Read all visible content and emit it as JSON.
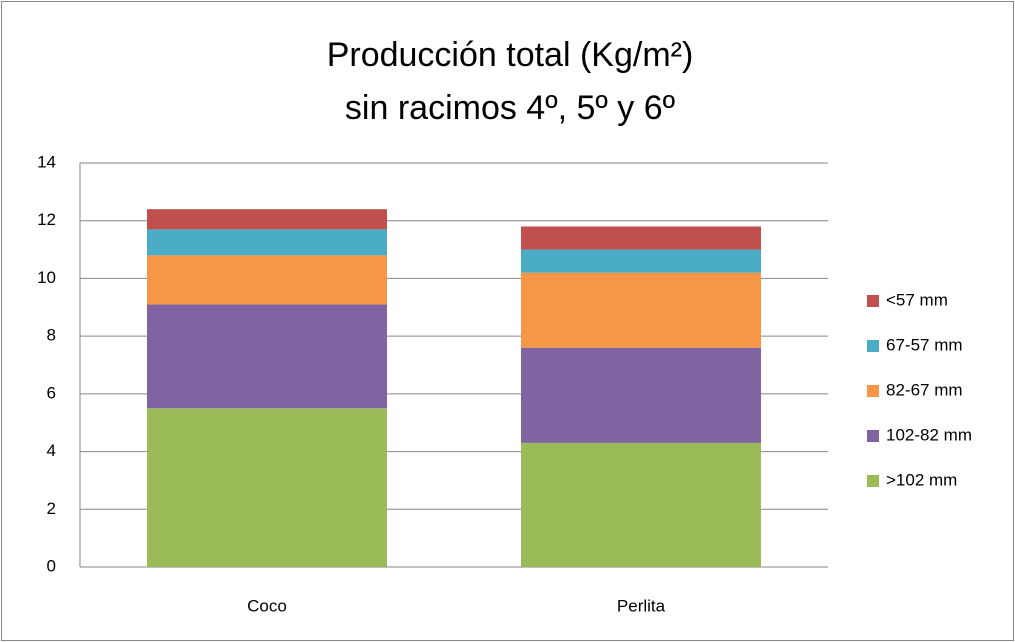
{
  "chart_data": {
    "type": "stacked_bar",
    "title": "Producción total (Kg/m²)",
    "subtitle": "sin racimos 4º, 5º y 6º",
    "categories": [
      "Coco",
      "Perlita"
    ],
    "series": [
      {
        "name": ">102 mm",
        "color": "#9bbb59",
        "values": [
          5.5,
          4.3
        ]
      },
      {
        "name": "102-82 mm",
        "color": "#8064a2",
        "values": [
          3.6,
          3.3
        ]
      },
      {
        "name": "82-67 mm",
        "color": "#f79646",
        "values": [
          1.7,
          2.6
        ]
      },
      {
        "name": "67-57 mm",
        "color": "#4bacc6",
        "values": [
          0.9,
          0.8
        ]
      },
      {
        "name": "<57 mm",
        "color": "#c0504d",
        "values": [
          0.7,
          0.8
        ]
      }
    ],
    "ylim": [
      0,
      14
    ],
    "yticks": [
      0,
      2,
      4,
      6,
      8,
      10,
      12,
      14
    ],
    "grid": true,
    "legend": "right"
  }
}
